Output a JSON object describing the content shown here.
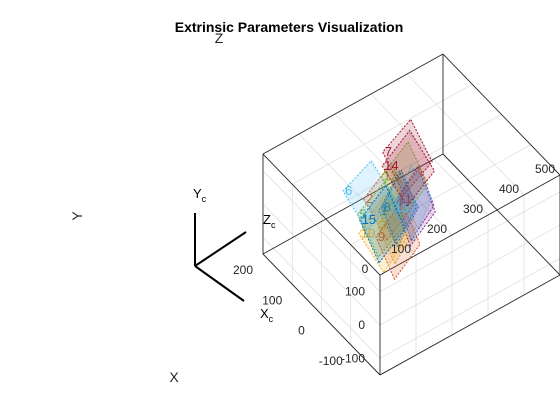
{
  "figure": {
    "title": "Extrinsic Parameters Visualization"
  },
  "chart_data": {
    "type": "3d-extrinsics",
    "title": "Extrinsic Parameters Visualization",
    "xlabel": "X",
    "ylabel": "Y",
    "zlabel": "Z",
    "xlim": [
      -200,
      200
    ],
    "ylim": [
      -150,
      150
    ],
    "zlim": [
      0,
      500
    ],
    "x_ticks": [
      "-100",
      "0",
      "100",
      "200"
    ],
    "y_ticks": [
      "100",
      "0",
      "-100"
    ],
    "z_ticks": [
      "0",
      "100",
      "200",
      "300",
      "400",
      "500"
    ],
    "grid": true,
    "camera": {
      "axis_labels": [
        {
          "letter": "X",
          "sub": "c"
        },
        {
          "letter": "Y",
          "sub": "c"
        },
        {
          "letter": "Z",
          "sub": "c"
        }
      ]
    },
    "planes": [
      {
        "id": "1",
        "color": "#0072BD",
        "center": [
          20,
          10,
          230
        ],
        "tilt": 0.55,
        "rot": -0.2
      },
      {
        "id": "2",
        "color": "#D95319",
        "center": [
          40,
          20,
          220
        ],
        "tilt": 0.35,
        "rot": 0.25
      },
      {
        "id": "3",
        "color": "#EDB120",
        "center": [
          0,
          -10,
          210
        ],
        "tilt": 0.65,
        "rot": -0.15
      },
      {
        "id": "4",
        "color": "#7E2F8E",
        "center": [
          -10,
          30,
          250
        ],
        "tilt": 0.7,
        "rot": 0.05
      },
      {
        "id": "5",
        "color": "#77AC30",
        "center": [
          40,
          -20,
          200
        ],
        "tilt": 0.4,
        "rot": 0.35
      },
      {
        "id": "6",
        "color": "#4DBEEE",
        "center": [
          120,
          -40,
          230
        ],
        "tilt": 0.1,
        "rot": 0.6
      },
      {
        "id": "7",
        "color": "#A2142F",
        "center": [
          100,
          40,
          320
        ],
        "tilt": 0.35,
        "rot": 0.4
      },
      {
        "id": "8",
        "color": "#0072BD",
        "center": [
          30,
          0,
          240
        ],
        "tilt": 0.75,
        "rot": -0.25
      },
      {
        "id": "9",
        "color": "#D95319",
        "center": [
          -40,
          0,
          180
        ],
        "tilt": 0.6,
        "rot": 0.1
      },
      {
        "id": "10",
        "color": "#EDB120",
        "center": [
          20,
          -40,
          190
        ],
        "tilt": 0.3,
        "rot": 0.1
      },
      {
        "id": "11",
        "color": "#7E2F8E",
        "center": [
          0,
          30,
          260
        ],
        "tilt": 0.8,
        "rot": -0.1
      },
      {
        "id": "12",
        "color": "#77AC30",
        "center": [
          60,
          30,
          280
        ],
        "tilt": 0.5,
        "rot": 0.2
      },
      {
        "id": "13",
        "color": "#4DBEEE",
        "center": [
          10,
          20,
          260
        ],
        "tilt": 0.45,
        "rot": -0.3
      },
      {
        "id": "14",
        "color": "#A2142F",
        "center": [
          60,
          60,
          290
        ],
        "tilt": 0.25,
        "rot": 0.3
      },
      {
        "id": "15",
        "color": "#0072BD",
        "center": [
          50,
          -50,
          210
        ],
        "tilt": 0.55,
        "rot": 0.15
      }
    ]
  }
}
